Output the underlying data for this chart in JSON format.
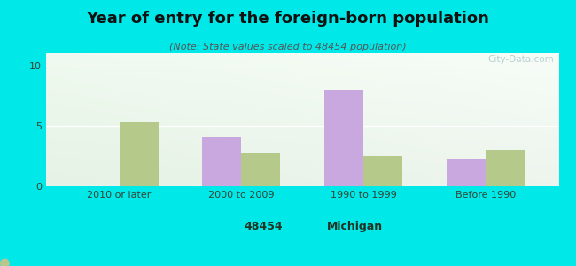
{
  "title": "Year of entry for the foreign-born population",
  "subtitle": "(Note: State values scaled to 48454 population)",
  "categories": [
    "2010 or later",
    "2000 to 2009",
    "1990 to 1999",
    "Before 1990"
  ],
  "values_48454": [
    0,
    4.0,
    8.0,
    2.3
  ],
  "values_michigan": [
    5.3,
    2.8,
    2.5,
    3.0
  ],
  "bar_color_48454": "#c9a8e0",
  "bar_color_michigan": "#b5c98a",
  "background_color": "#00e8e8",
  "plot_bg_topleft": "#e8f8f0",
  "plot_bg_topright": "#f8fff8",
  "plot_bg_bottom": "#d0f0e0",
  "ylim": [
    0,
    11
  ],
  "yticks": [
    0,
    5,
    10
  ],
  "bar_width": 0.32,
  "legend_label_48454": "48454",
  "legend_label_michigan": "Michigan",
  "watermark": "City-Data.com",
  "title_fontsize": 13,
  "subtitle_fontsize": 8,
  "tick_fontsize": 8
}
